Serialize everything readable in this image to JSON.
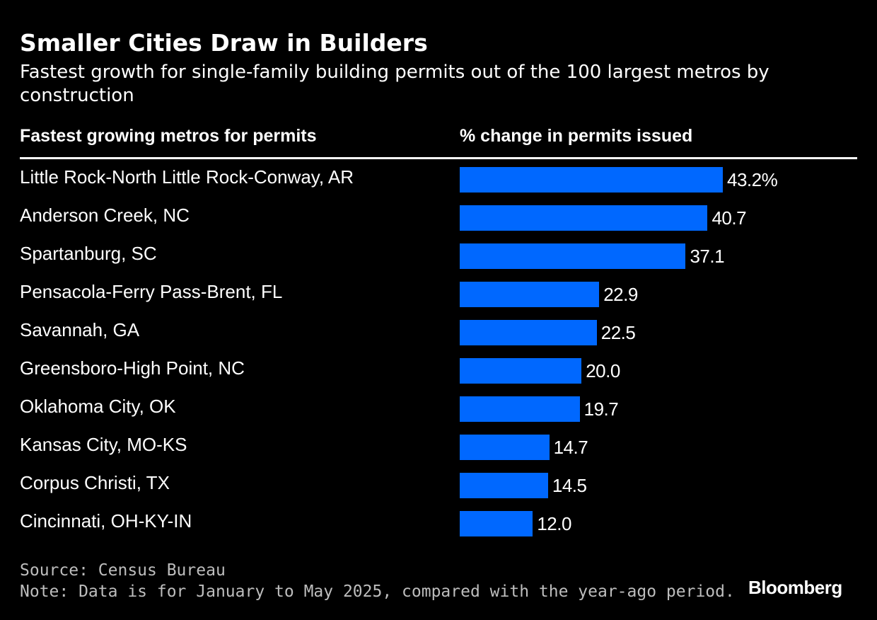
{
  "title": "Smaller Cities Draw in Builders",
  "subtitle": "Fastest growth for single-family building permits out of the 100 largest metros by construction",
  "columns": {
    "left": "Fastest growing metros for permits",
    "right": "% change in permits issued"
  },
  "chart_data": {
    "type": "bar",
    "orientation": "horizontal",
    "categories": [
      "Little Rock-North Little Rock-Conway, AR",
      "Anderson Creek, NC",
      "Spartanburg, SC",
      "Pensacola-Ferry Pass-Brent, FL",
      "Savannah, GA",
      "Greensboro-High Point, NC",
      "Oklahoma City, OK",
      "Kansas City, MO-KS",
      "Corpus Christi, TX",
      "Cincinnati, OH-KY-IN"
    ],
    "values": [
      43.2,
      40.7,
      37.1,
      22.9,
      22.5,
      20.0,
      19.7,
      14.7,
      14.5,
      12.0
    ],
    "value_labels": [
      "43.2%",
      "40.7",
      "37.1",
      "22.9",
      "22.5",
      "20.0",
      "19.7",
      "14.7",
      "14.5",
      "12.0"
    ],
    "xlim": [
      0,
      43.2
    ],
    "bar_color": "#0068ff",
    "grid": false,
    "legend": "none"
  },
  "footer": {
    "source": "Source: Census Bureau",
    "note": "Note: Data is for January to May 2025, compared with the year-ago period."
  },
  "brand": "Bloomberg",
  "colors": {
    "background": "#000000",
    "text": "#ffffff",
    "bar": "#0068ff",
    "footer": "#bdbdbd"
  }
}
